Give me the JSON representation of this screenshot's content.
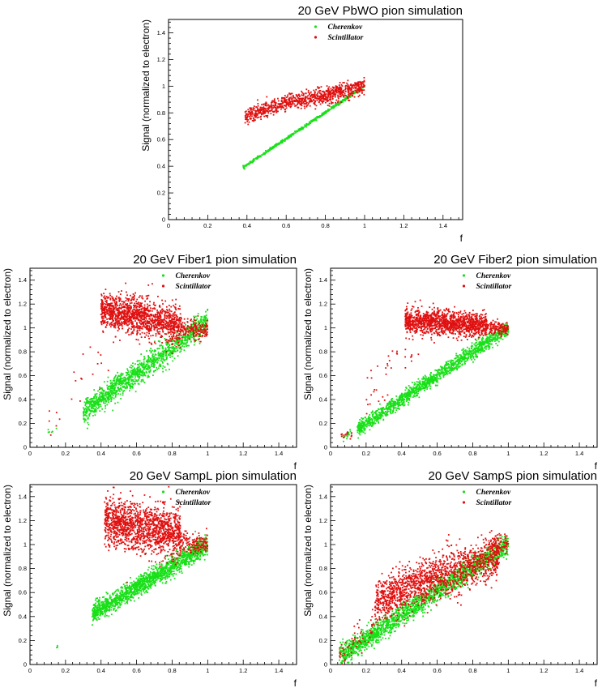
{
  "colors": {
    "cherenkov": "#18e018",
    "scintillator": "#e01010",
    "axis": "#000000"
  },
  "chart_data": [
    {
      "type": "scatter",
      "title": "20 GeV PbWO pion simulation",
      "xlabel": "f",
      "ylabel": "Signal (normalized to electron)",
      "xlim": [
        0,
        1.5
      ],
      "ylim": [
        0,
        1.5
      ],
      "xticks": [
        "0",
        "0.2",
        "0.4",
        "0.6",
        "0.8",
        "1",
        "1.2",
        "1.4"
      ],
      "yticks": [
        "0",
        "0.2",
        "0.4",
        "0.6",
        "0.8",
        "1",
        "1.2",
        "1.4"
      ],
      "legend": [
        "Cherenkov",
        "Scintillator"
      ],
      "legend_position": "top-center",
      "series": [
        {
          "name": "Cherenkov",
          "clusters": [
            {
              "x_range": [
                0.38,
                1.0
              ],
              "line": [
                [
                  0.38,
                  0.39
                ],
                [
                  1.0,
                  1.0
                ]
              ],
              "spread": 0.005,
              "count": 520
            }
          ]
        },
        {
          "name": "Scintillator",
          "clusters": [
            {
              "x_range": [
                0.39,
                1.0
              ],
              "line": [
                [
                  0.4,
                  0.78
                ],
                [
                  0.6,
                  0.87
                ],
                [
                  0.8,
                  0.93
                ],
                [
                  1.0,
                  1.0
                ]
              ],
              "spread": 0.03,
              "count": 900
            }
          ]
        }
      ]
    },
    {
      "type": "scatter",
      "title": "20 GeV Fiber1 pion simulation",
      "xlabel": "f",
      "ylabel": "Signal (normalized to electron)",
      "xlim": [
        0,
        1.5
      ],
      "ylim": [
        0,
        1.5
      ],
      "xticks": [
        "0",
        "0.2",
        "0.4",
        "0.6",
        "0.8",
        "1",
        "1.2",
        "1.4"
      ],
      "yticks": [
        "0",
        "0.2",
        "0.4",
        "0.6",
        "0.8",
        "1",
        "1.2",
        "1.4"
      ],
      "legend": [
        "Cherenkov",
        "Scintillator"
      ],
      "legend_position": "top-center",
      "series": [
        {
          "name": "Cherenkov",
          "clusters": [
            {
              "x_range": [
                0.3,
                1.0
              ],
              "line": [
                [
                  0.3,
                  0.3
                ],
                [
                  1.0,
                  1.05
                ]
              ],
              "spread": 0.05,
              "count": 1300
            },
            {
              "x_range": [
                0.1,
                0.15
              ],
              "line": [
                [
                  0.1,
                  0.12
                ],
                [
                  0.15,
                  0.14
                ]
              ],
              "spread": 0.02,
              "count": 6
            }
          ]
        },
        {
          "name": "Scintillator",
          "clusters": [
            {
              "x_range": [
                0.4,
                0.85
              ],
              "line": [
                [
                  0.4,
                  1.15
                ],
                [
                  0.85,
                  1.02
                ]
              ],
              "spread": 0.08,
              "count": 1300
            },
            {
              "x_range": [
                0.85,
                1.0
              ],
              "line": [
                [
                  0.85,
                  1.0
                ],
                [
                  1.0,
                  0.97
                ]
              ],
              "spread": 0.04,
              "count": 160
            },
            {
              "x_range": [
                0.1,
                0.45
              ],
              "line": [
                [
                  0.12,
                  0.15
                ],
                [
                  0.45,
                  0.9
                ]
              ],
              "spread": 0.12,
              "count": 22
            }
          ]
        }
      ]
    },
    {
      "type": "scatter",
      "title": "20 GeV Fiber2 pion simulation",
      "xlabel": "f",
      "ylabel": "Signal (normalized to electron)",
      "xlim": [
        0,
        1.5
      ],
      "ylim": [
        0,
        1.5
      ],
      "xticks": [
        "0",
        "0.2",
        "0.4",
        "0.6",
        "0.8",
        "1",
        "1.2",
        "1.4"
      ],
      "yticks": [
        "0",
        "0.2",
        "0.4",
        "0.6",
        "0.8",
        "1",
        "1.2",
        "1.4"
      ],
      "legend": [
        "Cherenkov",
        "Scintillator"
      ],
      "legend_position": "top-center",
      "series": [
        {
          "name": "Cherenkov",
          "clusters": [
            {
              "x_range": [
                0.15,
                1.0
              ],
              "line": [
                [
                  0.15,
                  0.15
                ],
                [
                  1.0,
                  1.0
                ]
              ],
              "spread": 0.03,
              "count": 1400
            },
            {
              "x_range": [
                0.06,
                0.12
              ],
              "line": [
                [
                  0.06,
                  0.08
                ],
                [
                  0.12,
                  0.12
                ]
              ],
              "spread": 0.02,
              "count": 15
            }
          ]
        },
        {
          "name": "Scintillator",
          "clusters": [
            {
              "x_range": [
                0.42,
                0.88
              ],
              "line": [
                [
                  0.42,
                  1.06
                ],
                [
                  0.88,
                  1.02
                ]
              ],
              "spread": 0.05,
              "count": 1300
            },
            {
              "x_range": [
                0.88,
                1.0
              ],
              "line": [
                [
                  0.88,
                  1.0
                ],
                [
                  1.0,
                  1.0
                ]
              ],
              "spread": 0.03,
              "count": 140
            },
            {
              "x_range": [
                0.2,
                0.5
              ],
              "line": [
                [
                  0.2,
                  0.4
                ],
                [
                  0.5,
                  0.95
                ]
              ],
              "spread": 0.1,
              "count": 40
            },
            {
              "x_range": [
                0.06,
                0.12
              ],
              "line": [
                [
                  0.06,
                  0.09
                ],
                [
                  0.12,
                  0.12
                ]
              ],
              "spread": 0.02,
              "count": 15
            }
          ]
        }
      ]
    },
    {
      "type": "scatter",
      "title": "20 GeV SampL pion simulation",
      "xlabel": "f",
      "ylabel": "Signal (normalized to electron)",
      "xlim": [
        0,
        1.5
      ],
      "ylim": [
        0,
        1.5
      ],
      "xticks": [
        "0",
        "0.2",
        "0.4",
        "0.6",
        "0.8",
        "1",
        "1.2",
        "1.4"
      ],
      "yticks": [
        "0",
        "0.2",
        "0.4",
        "0.6",
        "0.8",
        "1",
        "1.2",
        "1.4"
      ],
      "legend": [
        "Cherenkov",
        "Scintillator"
      ],
      "legend_position": "top-center",
      "series": [
        {
          "name": "Cherenkov",
          "clusters": [
            {
              "x_range": [
                0.35,
                1.0
              ],
              "line": [
                [
                  0.35,
                  0.42
                ],
                [
                  1.0,
                  1.0
                ]
              ],
              "spread": 0.04,
              "count": 1500
            },
            {
              "x_range": [
                0.15,
                0.16
              ],
              "line": [
                [
                  0.15,
                  0.15
                ],
                [
                  0.16,
                  0.15
                ]
              ],
              "spread": 0.005,
              "count": 3
            }
          ]
        },
        {
          "name": "Scintillator",
          "clusters": [
            {
              "x_range": [
                0.42,
                0.85
              ],
              "line": [
                [
                  0.42,
                  1.2
                ],
                [
                  0.85,
                  1.08
                ]
              ],
              "spread": 0.1,
              "count": 1400
            },
            {
              "x_range": [
                0.85,
                1.0
              ],
              "line": [
                [
                  0.85,
                  1.02
                ],
                [
                  1.0,
                  1.0
                ]
              ],
              "spread": 0.04,
              "count": 140
            }
          ]
        }
      ]
    },
    {
      "type": "scatter",
      "title": "20 GeV SampS pion simulation",
      "xlabel": "f",
      "ylabel": "Signal (normalized to electron)",
      "xlim": [
        0,
        1.5
      ],
      "ylim": [
        0,
        1.5
      ],
      "xticks": [
        "0",
        "0.2",
        "0.4",
        "0.6",
        "0.8",
        "1",
        "1.2",
        "1.4"
      ],
      "yticks": [
        "0",
        "0.2",
        "0.4",
        "0.6",
        "0.8",
        "1",
        "1.2",
        "1.4"
      ],
      "legend": [
        "Cherenkov",
        "Scintillator"
      ],
      "legend_position": "top-center",
      "series": [
        {
          "name": "Cherenkov",
          "clusters": [
            {
              "x_range": [
                0.05,
                1.0
              ],
              "line": [
                [
                  0.05,
                  0.07
                ],
                [
                  1.0,
                  1.0
                ]
              ],
              "spread": 0.045,
              "count": 1900
            }
          ]
        },
        {
          "name": "Scintillator",
          "clusters": [
            {
              "x_range": [
                0.25,
                0.95
              ],
              "line": [
                [
                  0.25,
                  0.52
                ],
                [
                  0.5,
                  0.68
                ],
                [
                  0.95,
                  0.9
                ]
              ],
              "spread": 0.09,
              "count": 1500
            },
            {
              "x_range": [
                0.05,
                0.25
              ],
              "line": [
                [
                  0.05,
                  0.07
                ],
                [
                  0.25,
                  0.35
                ]
              ],
              "spread": 0.06,
              "count": 60
            },
            {
              "x_range": [
                0.9,
                1.0
              ],
              "line": [
                [
                  0.9,
                  0.98
                ],
                [
                  1.0,
                  1.0
                ]
              ],
              "spread": 0.04,
              "count": 80
            }
          ]
        }
      ]
    }
  ]
}
